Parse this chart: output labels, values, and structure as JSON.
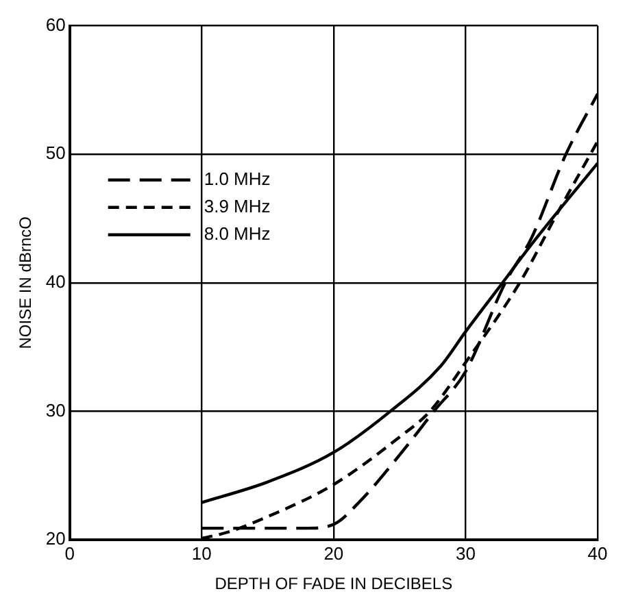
{
  "chart_data": {
    "type": "line",
    "xlabel": "DEPTH OF FADE IN DECIBELS",
    "ylabel": "NOISE IN dBrncO",
    "xlim": [
      0,
      40
    ],
    "xticks": [
      0,
      10,
      20,
      30,
      40
    ],
    "ylim": [
      20,
      60
    ],
    "yticks": [
      20,
      30,
      40,
      50,
      60
    ],
    "grid": true,
    "legend": "top left",
    "marker": "none",
    "series": [
      {
        "name": "1.0 MHz",
        "color": "#000000",
        "line_style": "dashed",
        "x": [
          10,
          15,
          18,
          20,
          22,
          25,
          27.6,
          30,
          33,
          35,
          37.6,
          40
        ],
        "values": [
          20.9,
          20.9,
          20.9,
          21.2,
          23,
          26.6,
          30,
          33.1,
          40,
          43.5,
          50,
          54.7
        ]
      },
      {
        "name": "3.9 MHz",
        "color": "#000000",
        "line_style": "dotted",
        "x": [
          10,
          12,
          15,
          20,
          25,
          27.3,
          30,
          34.1,
          37,
          40
        ],
        "values": [
          20.1,
          20.6,
          21.8,
          24.3,
          28,
          30,
          33.8,
          40,
          45.5,
          51
        ]
      },
      {
        "name": "8.0 MHz",
        "color": "#000000",
        "line_style": "solid",
        "x": [
          10,
          15,
          20,
          24.3,
          28.1,
          30,
          32.8,
          35,
          40
        ],
        "values": [
          22.9,
          24.5,
          26.8,
          30,
          33.5,
          36.2,
          40,
          43,
          49.3
        ]
      }
    ]
  }
}
